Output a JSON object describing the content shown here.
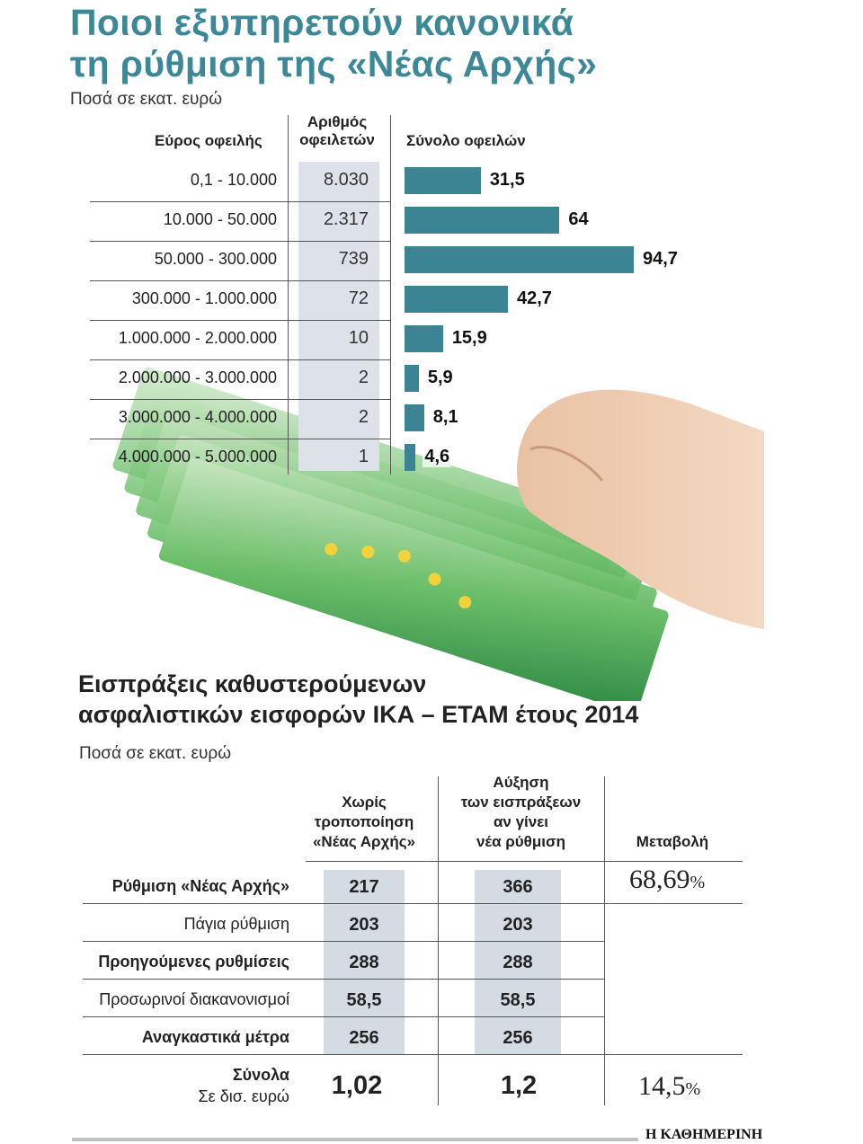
{
  "title": {
    "line1": "Ποιοι εξυπηρετούν κανονικά",
    "line2": "τη ρύθμιση της «Νέας Αρχής»"
  },
  "units": "Ποσά σε εκατ. ευρώ",
  "columns": {
    "range": "Εύρος οφειλής",
    "count_line1": "Αριθμός",
    "count_line2": "οφειλετών",
    "total": "Σύνολο οφειλών"
  },
  "rows": [
    {
      "range": "0,1 - 10.000",
      "count": "8.030",
      "total": "31,5"
    },
    {
      "range": "10.000 - 50.000",
      "count": "2.317",
      "total": "64"
    },
    {
      "range": "50.000 - 300.000",
      "count": "739",
      "total": "94,7"
    },
    {
      "range": "300.000 - 1.000.000",
      "count": "72",
      "total": "42,7"
    },
    {
      "range": "1.000.000 - 2.000.000",
      "count": "10",
      "total": "15,9"
    },
    {
      "range": "2.000.000 - 3.000.000",
      "count": "2",
      "total": "5,9"
    },
    {
      "range": "3.000.000 - 4.000.000",
      "count": "2",
      "total": "8,1"
    },
    {
      "range": "4.000.000 - 5.000.000",
      "count": "1",
      "total": "4,6"
    }
  ],
  "chart_data": {
    "type": "bar",
    "orientation": "horizontal",
    "title": "Σύνολο οφειλών",
    "categories": [
      "0,1 - 10.000",
      "10.000 - 50.000",
      "50.000 - 300.000",
      "300.000 - 1.000.000",
      "1.000.000 - 2.000.000",
      "2.000.000 - 3.000.000",
      "3.000.000 - 4.000.000",
      "4.000.000 - 5.000.000"
    ],
    "values": [
      31.5,
      64,
      94.7,
      42.7,
      15.9,
      5.9,
      8.1,
      4.6
    ],
    "bar_color": "#3a8494"
  },
  "table2": {
    "title_line1": "Εισπράξεις καθυστερούμενων",
    "title_line2": "ασφαλιστικών εισφορών ΙΚΑ – ΕΤΑΜ έτους 2014",
    "units": "Ποσά σε εκατ. ευρώ",
    "col1": [
      "Χωρίς",
      "τροποποίηση",
      "«Νέας Αρχής»"
    ],
    "col2": [
      "Αύξηση",
      "των εισπράξεων",
      "αν γίνει",
      "νέα ρύθμιση"
    ],
    "col3": "Μεταβολή",
    "rows": [
      {
        "label": "Ρύθμιση «Νέας Αρχής»",
        "bold": true,
        "v1": "217",
        "v2": "366"
      },
      {
        "label": "Πάγια ρύθμιση",
        "bold": false,
        "v1": "203",
        "v2": "203"
      },
      {
        "label": "Προηγούμενες ρυθμίσεις",
        "bold": true,
        "v1": "288",
        "v2": "288"
      },
      {
        "label": "Προσωρινοί διακανονισμοί",
        "bold": false,
        "v1": "58,5",
        "v2": "58,5"
      },
      {
        "label": "Αναγκαστικά μέτρα",
        "bold": true,
        "v1": "256",
        "v2": "256"
      }
    ],
    "change_first": "68,69",
    "totals_label": "Σύνολα",
    "totals_sub": "Σε δισ. ευρώ",
    "total1": "1,02",
    "total2": "1,2",
    "change_total": "14,5",
    "percent_sign": "%"
  },
  "brand": "Η ΚΑΘΗΜΕΡΙΝΗ"
}
